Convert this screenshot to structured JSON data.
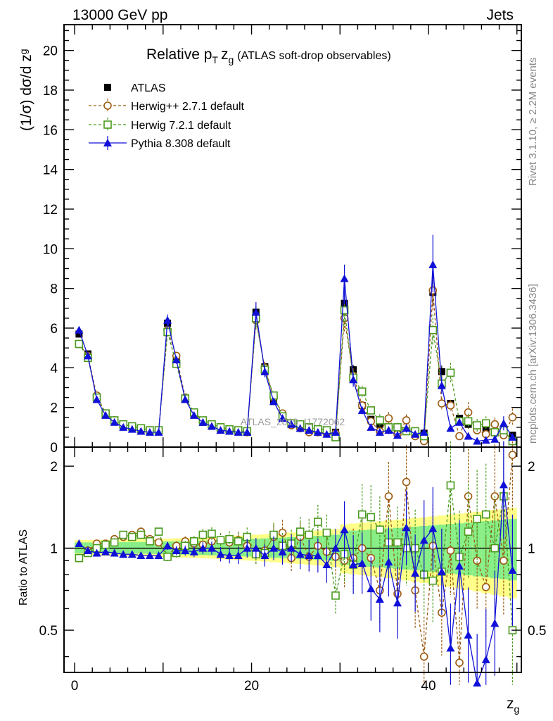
{
  "header": {
    "left": "13000 GeV pp",
    "right": "Jets"
  },
  "side_texts": {
    "rivet": "Rivet 3.1.10, ≥ 2.2M events",
    "mcplots": "mcplots.cern.ch [arXiv:1306.3436]"
  },
  "watermark": "ATLAS_2019_I1772062",
  "colors": {
    "atlas": "#000000",
    "herwigpp": "#9c5a10",
    "herwig7": "#4a9a1e",
    "pythia": "#1010d8",
    "band_yellow": "#ffff88",
    "band_green": "#88ee88"
  },
  "chart_data": [
    {
      "type": "scatter",
      "panel": "main",
      "title": "Relative pT zg (ATLAS soft-drop observables)",
      "title_main": "Relative p",
      "title_sub_T": "T",
      "title_z": "z",
      "title_sub_g": "g",
      "title_rest": "(ATLAS soft-drop observables)",
      "ylabel": "(1/σ) dσ/d z",
      "ylabel_parts": {
        "main": "(1/σ) dσ/d z",
        "sub": "g"
      },
      "xlim": [
        -1.2,
        50.5
      ],
      "ylim": [
        0,
        21.3
      ],
      "yticks": [
        0,
        2,
        4,
        6,
        8,
        10,
        12,
        14,
        16,
        18,
        20
      ],
      "series": [
        {
          "name": "ATLAS",
          "marker": "filled-square",
          "x": [
            0.5,
            1.5,
            2.5,
            3.5,
            4.5,
            5.5,
            6.5,
            7.5,
            8.5,
            9.5,
            10.5,
            11.5,
            12.5,
            13.5,
            14.5,
            15.5,
            16.5,
            17.5,
            18.5,
            19.5,
            20.5,
            21.5,
            22.5,
            23.5,
            24.5,
            25.5,
            26.5,
            27.5,
            28.5,
            29.5,
            30.5,
            31.5,
            32.5,
            33.5,
            34.5,
            35.5,
            36.5,
            37.5,
            38.5,
            39.5,
            40.5,
            41.5,
            42.5,
            43.5,
            44.5,
            45.5,
            46.5,
            47.5,
            48.5,
            49.5
          ],
          "values": [
            5.7,
            4.7,
            2.5,
            1.65,
            1.3,
            1.05,
            0.95,
            0.85,
            0.8,
            0.8,
            6.25,
            4.5,
            2.45,
            1.65,
            1.25,
            1.05,
            0.9,
            0.85,
            0.8,
            0.75,
            6.8,
            4.05,
            2.3,
            1.5,
            1.15,
            1.0,
            0.9,
            0.8,
            0.75,
            0.75,
            7.25,
            3.9,
            2.1,
            1.4,
            1.15,
            0.95,
            0.95,
            0.8,
            0.8,
            0.7,
            7.8,
            3.8,
            2.2,
            1.45,
            1.15,
            0.95,
            0.9,
            0.75,
            0.7,
            0.6
          ]
        },
        {
          "name": "Herwig++ 2.7.1 default",
          "marker": "open-circle",
          "x": [
            0.5,
            1.5,
            2.5,
            3.5,
            4.5,
            5.5,
            6.5,
            7.5,
            8.5,
            9.5,
            10.5,
            11.5,
            12.5,
            13.5,
            14.5,
            15.5,
            16.5,
            17.5,
            18.5,
            19.5,
            20.5,
            21.5,
            22.5,
            23.5,
            24.5,
            25.5,
            26.5,
            27.5,
            28.5,
            29.5,
            30.5,
            31.5,
            32.5,
            33.5,
            34.5,
            35.5,
            36.5,
            37.5,
            38.5,
            39.5,
            40.5,
            41.5,
            42.5,
            43.5,
            44.5,
            45.5,
            46.5,
            47.5,
            48.5,
            49.5
          ],
          "values": [
            5.2,
            4.6,
            2.6,
            1.7,
            1.35,
            1.15,
            1.05,
            0.95,
            0.85,
            0.8,
            5.9,
            4.6,
            2.5,
            1.7,
            1.3,
            1.1,
            0.95,
            0.85,
            0.8,
            0.75,
            6.4,
            4.0,
            2.5,
            1.7,
            1.1,
            0.95,
            0.75,
            0.75,
            0.7,
            0.7,
            6.5,
            3.6,
            2.1,
            1.3,
            0.8,
            1.45,
            0.65,
            1.35,
            0.55,
            0.3,
            7.9,
            2.2,
            2.1,
            0.55,
            1.75,
            0.85,
            0.65,
            1.15,
            0.6,
            1.5
          ]
        },
        {
          "name": "Herwig 7.2.1 default",
          "marker": "open-square",
          "x": [
            0.5,
            1.5,
            2.5,
            3.5,
            4.5,
            5.5,
            6.5,
            7.5,
            8.5,
            9.5,
            10.5,
            11.5,
            12.5,
            13.5,
            14.5,
            15.5,
            16.5,
            17.5,
            18.5,
            19.5,
            20.5,
            21.5,
            22.5,
            23.5,
            24.5,
            25.5,
            26.5,
            27.5,
            28.5,
            29.5,
            30.5,
            31.5,
            32.5,
            33.5,
            34.5,
            35.5,
            36.5,
            37.5,
            38.5,
            39.5,
            40.5,
            41.5,
            42.5,
            43.5,
            44.5,
            45.5,
            46.5,
            47.5,
            48.5,
            49.5
          ],
          "values": [
            5.2,
            4.5,
            2.5,
            1.7,
            1.35,
            1.15,
            1.05,
            0.95,
            0.85,
            0.85,
            5.8,
            4.2,
            2.45,
            1.75,
            1.35,
            1.15,
            1.0,
            0.9,
            0.85,
            0.8,
            6.5,
            3.9,
            2.6,
            1.55,
            1.2,
            1.15,
            1.0,
            0.9,
            0.85,
            0.5,
            6.9,
            3.5,
            2.8,
            1.85,
            1.35,
            1.0,
            1.0,
            0.8,
            0.8,
            0.55,
            5.9,
            3.2,
            3.75,
            1.3,
            1.3,
            1.1,
            1.2,
            0.75,
            0.85,
            0.3
          ]
        },
        {
          "name": "Pythia 8.308 default",
          "marker": "filled-triangle",
          "x": [
            0.5,
            1.5,
            2.5,
            3.5,
            4.5,
            5.5,
            6.5,
            7.5,
            8.5,
            9.5,
            10.5,
            11.5,
            12.5,
            13.5,
            14.5,
            15.5,
            16.5,
            17.5,
            18.5,
            19.5,
            20.5,
            21.5,
            22.5,
            23.5,
            24.5,
            25.5,
            26.5,
            27.5,
            28.5,
            29.5,
            30.5,
            31.5,
            32.5,
            33.5,
            34.5,
            35.5,
            36.5,
            37.5,
            38.5,
            39.5,
            40.5,
            41.5,
            42.5,
            43.5,
            44.5,
            45.5,
            46.5,
            47.5,
            48.5,
            49.5
          ],
          "values": [
            5.9,
            4.6,
            2.4,
            1.6,
            1.25,
            1.0,
            0.9,
            0.8,
            0.75,
            0.75,
            6.4,
            4.4,
            2.4,
            1.6,
            1.25,
            1.05,
            0.85,
            0.8,
            0.75,
            0.75,
            6.8,
            3.8,
            2.3,
            1.45,
            1.15,
            0.95,
            0.85,
            0.75,
            0.65,
            0.75,
            8.5,
            3.4,
            1.85,
            1.0,
            0.75,
            0.85,
            0.6,
            0.95,
            0.65,
            0.75,
            9.2,
            3.1,
            0.95,
            1.25,
            0.55,
            0.3,
            0.35,
            0.4,
            1.2,
            0.5
          ]
        }
      ],
      "error_scale": [
        {
          "x": 30.5,
          "lo": 7.2,
          "hi": 9.2
        },
        {
          "x": 40.5,
          "lo": 7.8,
          "hi": 10.7
        }
      ]
    },
    {
      "type": "scatter",
      "panel": "ratio",
      "ylabel": "Ratio to ATLAS",
      "xlabel": "z",
      "xlabel_sub": "g",
      "xlim": [
        -1.2,
        50.5
      ],
      "ylim": [
        0.35,
        2.35
      ],
      "log_y": true,
      "yticks": [
        0.5,
        1,
        2
      ],
      "ytick_labels": [
        "0.5",
        "1",
        "2"
      ],
      "xticks": [
        0,
        20,
        40
      ],
      "xtick_labels": [
        "0",
        "20",
        "40"
      ],
      "series": [
        {
          "name": "Herwig++ 2.7.1 default",
          "values": [
            0.92,
            0.98,
            1.04,
            1.04,
            1.08,
            1.1,
            1.12,
            1.15,
            1.08,
            1.05,
            0.93,
            1.02,
            1.06,
            1.04,
            1.03,
            1.06,
            1.07,
            1.05,
            1.07,
            1.02,
            0.95,
            0.98,
            1.1,
            1.14,
            0.92,
            1.1,
            0.93,
            1.02,
            0.97,
            0.93,
            0.9,
            0.92,
            1.0,
            0.92,
            0.7,
            1.55,
            0.68,
            1.75,
            0.7,
            0.4,
            1.02,
            0.58,
            0.98,
            0.38,
            1.55,
            0.9,
            0.72,
            1.55,
            0.9,
            2.2
          ]
        },
        {
          "name": "Herwig 7.2.1 default",
          "values": [
            0.92,
            0.96,
            1.0,
            1.03,
            1.05,
            1.12,
            1.1,
            1.12,
            1.06,
            1.15,
            0.93,
            0.96,
            1.02,
            1.06,
            1.12,
            1.13,
            1.07,
            1.08,
            1.06,
            1.1,
            0.95,
            0.96,
            1.12,
            1.02,
            1.04,
            1.15,
            1.12,
            1.25,
            1.14,
            0.67,
            0.95,
            0.87,
            1.33,
            1.3,
            1.17,
            1.05,
            1.05,
            1.0,
            1.0,
            0.8,
            0.76,
            0.82,
            1.7,
            0.93,
            1.15,
            1.28,
            1.33,
            1.0,
            1.55,
            0.5
          ]
        },
        {
          "name": "Pythia 8.308 default",
          "values": [
            1.04,
            0.98,
            0.96,
            0.97,
            0.96,
            0.95,
            0.95,
            0.94,
            0.94,
            0.94,
            1.02,
            0.98,
            0.98,
            0.97,
            1.0,
            1.0,
            0.95,
            0.94,
            0.94,
            1.0,
            1.0,
            0.94,
            1.0,
            0.97,
            1.0,
            0.95,
            0.94,
            0.94,
            0.87,
            1.0,
            1.17,
            0.87,
            0.88,
            0.71,
            0.65,
            0.89,
            0.63,
            1.19,
            0.81,
            1.07,
            1.18,
            0.82,
            0.43,
            0.86,
            0.48,
            0.32,
            0.39,
            0.53,
            1.71,
            0.83
          ]
        }
      ]
    }
  ]
}
